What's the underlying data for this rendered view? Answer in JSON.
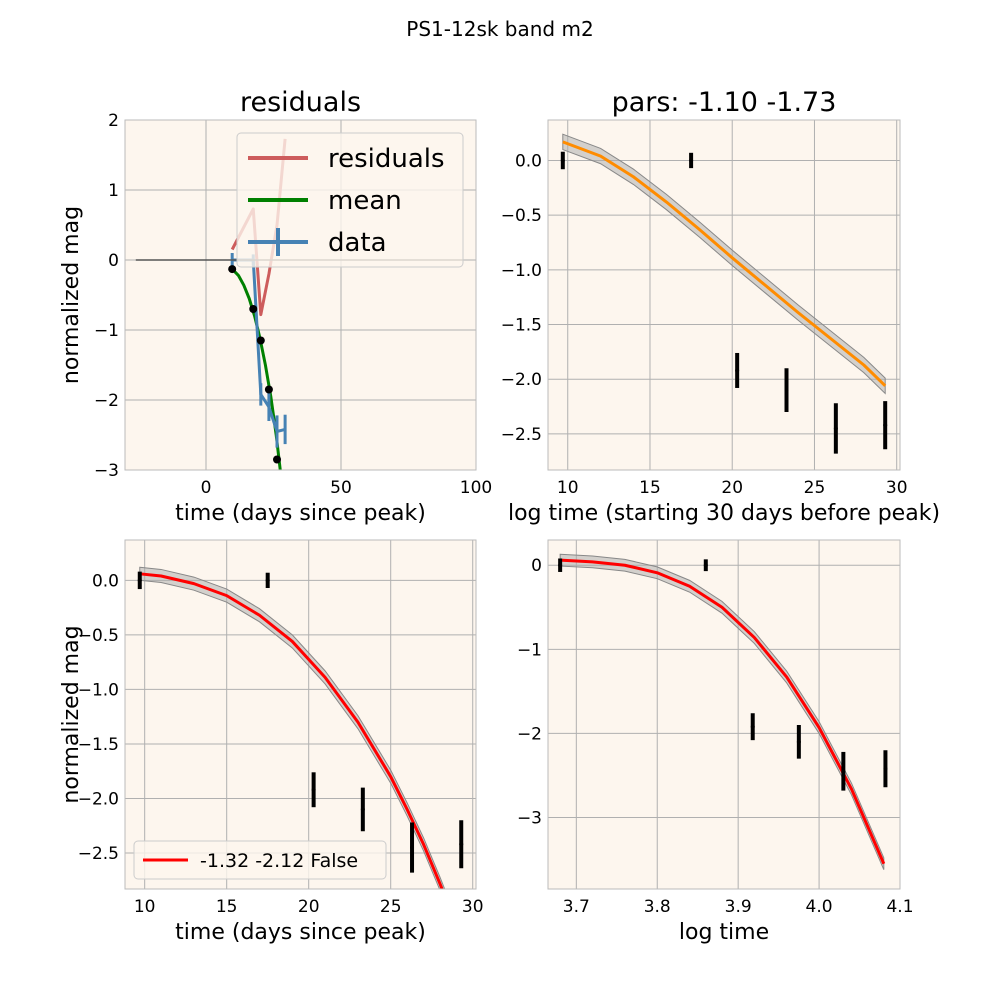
{
  "figure": {
    "suptitle": "PS1-12sk band m2"
  },
  "colors": {
    "panel_bg": "#fdf6ee",
    "grid": "#b0b0b0",
    "residuals": "#cd5c5c",
    "mean": "#008000",
    "data": "#4682b4",
    "fit_orange": "#ff8c00",
    "fit_red": "#ff0000",
    "band": "#a9a9a9",
    "points": "#000000",
    "baseline": "#555555"
  },
  "chart_data": [
    {
      "id": "residuals",
      "type": "line",
      "title": "residuals",
      "xlabel": "time (days since peak)",
      "ylabel": "normalized mag",
      "xlim": [
        -30,
        100
      ],
      "ylim": [
        -3,
        2
      ],
      "xticks": [
        0,
        50,
        100
      ],
      "xtick_labels": [
        "0",
        "50",
        "100"
      ],
      "yticks": [
        -3,
        -2,
        -1,
        0,
        1,
        2
      ],
      "ytick_labels": [
        "−3",
        "−2",
        "−1",
        "0",
        "1",
        "2"
      ],
      "grid": true,
      "legend": {
        "position": "top-right",
        "entries": [
          "residuals",
          "mean",
          "data"
        ]
      },
      "series": [
        {
          "name": "residuals",
          "style": "line",
          "x": [
            9.7,
            17.5,
            20.3,
            23.3,
            26.3,
            29.3
          ],
          "y": [
            0.15,
            0.73,
            -0.78,
            -0.2,
            0.5,
            1.73
          ]
        },
        {
          "name": "mean",
          "style": "line",
          "x": [
            9.7,
            12,
            14,
            16,
            18,
            20,
            22,
            24,
            26,
            27.5
          ],
          "y": [
            -0.13,
            -0.22,
            -0.36,
            -0.55,
            -0.8,
            -1.12,
            -1.5,
            -1.95,
            -2.5,
            -3.0
          ]
        },
        {
          "name": "data",
          "style": "errorbar",
          "x": [
            9.7,
            17.5,
            20.3,
            23.3,
            26.3,
            29.3
          ],
          "y": [
            0.0,
            0.0,
            -1.92,
            -2.1,
            -2.45,
            -2.42
          ],
          "yerr": [
            0.1,
            0.08,
            0.16,
            0.2,
            0.23,
            0.21
          ]
        },
        {
          "name": "observations",
          "style": "points",
          "x": [
            9.7,
            17.5,
            20.3,
            23.3,
            26.3
          ],
          "y": [
            -0.13,
            -0.7,
            -1.15,
            -1.85,
            -2.85
          ]
        },
        {
          "name": "baseline",
          "style": "line",
          "x": [
            -26,
            95
          ],
          "y": [
            0,
            0
          ]
        }
      ]
    },
    {
      "id": "pars",
      "type": "line",
      "title": "pars: -1.10 -1.73",
      "xlabel": "log time (starting 30 days before peak)",
      "ylabel": "",
      "xlim": [
        8.8,
        30.2
      ],
      "ylim": [
        -2.83,
        0.37
      ],
      "xticks": [
        10,
        15,
        20,
        25,
        30
      ],
      "xtick_labels": [
        "10",
        "15",
        "20",
        "25",
        "30"
      ],
      "yticks": [
        0,
        -0.5,
        -1,
        -1.5,
        -2,
        -2.5
      ],
      "ytick_labels": [
        "0.0",
        "−0.5",
        "−1.0",
        "−1.5",
        "−2.0",
        "−2.5"
      ],
      "grid": true,
      "series": [
        {
          "style": "line",
          "color_key": "fit_orange",
          "x": [
            9.7,
            12,
            14,
            16,
            18,
            20,
            22,
            24,
            26,
            28,
            29.3
          ],
          "y": [
            0.17,
            0.04,
            -0.15,
            -0.38,
            -0.63,
            -0.89,
            -1.14,
            -1.39,
            -1.63,
            -1.87,
            -2.06
          ],
          "band": 0.07
        },
        {
          "style": "errorbar",
          "x": [
            9.7,
            17.5,
            20.3,
            23.3,
            26.3,
            29.3
          ],
          "y": [
            0.0,
            0.0,
            -1.92,
            -2.1,
            -2.45,
            -2.42
          ],
          "yerr": [
            0.08,
            0.07,
            0.16,
            0.2,
            0.23,
            0.22
          ]
        }
      ]
    },
    {
      "id": "poly-time",
      "type": "line",
      "title": "",
      "xlabel": "time (days since peak)",
      "ylabel": "normalized mag",
      "xlim": [
        8.8,
        30.2
      ],
      "ylim": [
        -2.83,
        0.37
      ],
      "xticks": [
        10,
        15,
        20,
        25,
        30
      ],
      "xtick_labels": [
        "10",
        "15",
        "20",
        "25",
        "30"
      ],
      "yticks": [
        0,
        -0.5,
        -1,
        -1.5,
        -2,
        -2.5
      ],
      "ytick_labels": [
        "0.0",
        "−0.5",
        "−1.0",
        "−1.5",
        "−2.0",
        "−2.5"
      ],
      "grid": true,
      "legend": {
        "position": "lower-left",
        "entries": [
          "-1.32 -2.12 False"
        ]
      },
      "series": [
        {
          "name": "-1.32 -2.12 False",
          "style": "line",
          "color_key": "fit_red",
          "x": [
            9.7,
            11,
            13,
            15,
            17,
            19,
            21,
            23,
            25,
            26,
            27,
            28,
            29
          ],
          "y": [
            0.06,
            0.04,
            -0.03,
            -0.14,
            -0.32,
            -0.56,
            -0.89,
            -1.3,
            -1.8,
            -2.1,
            -2.42,
            -2.78,
            -3.16
          ],
          "band": 0.06
        },
        {
          "style": "errorbar",
          "x": [
            9.7,
            17.5,
            20.3,
            23.3,
            26.3,
            29.3
          ],
          "y": [
            0.0,
            0.0,
            -1.92,
            -2.1,
            -2.45,
            -2.42
          ],
          "yerr": [
            0.08,
            0.07,
            0.16,
            0.2,
            0.23,
            0.22
          ]
        }
      ]
    },
    {
      "id": "poly-logtime",
      "type": "line",
      "title": "",
      "xlabel": "log time",
      "ylabel": "",
      "xlim": [
        3.665,
        4.1
      ],
      "ylim": [
        -3.85,
        0.3
      ],
      "xticks": [
        3.7,
        3.8,
        3.9,
        4.0,
        4.1
      ],
      "xtick_labels": [
        "3.7",
        "3.8",
        "3.9",
        "4.0",
        "4.1"
      ],
      "yticks": [
        0,
        -1,
        -2,
        -3
      ],
      "ytick_labels": [
        "0",
        "−1",
        "−2",
        "−3"
      ],
      "grid": true,
      "series": [
        {
          "style": "line",
          "color_key": "fit_red",
          "x": [
            3.68,
            3.72,
            3.76,
            3.8,
            3.84,
            3.88,
            3.92,
            3.96,
            4.0,
            4.04,
            4.08
          ],
          "y": [
            0.06,
            0.04,
            0.0,
            -0.09,
            -0.25,
            -0.5,
            -0.86,
            -1.33,
            -1.93,
            -2.66,
            -3.55
          ],
          "band": 0.07
        },
        {
          "style": "errorbar",
          "x": [
            3.68,
            3.86,
            3.918,
            3.975,
            4.03,
            4.082
          ],
          "y": [
            0.0,
            0.0,
            -1.92,
            -2.1,
            -2.45,
            -2.42
          ],
          "yerr": [
            0.08,
            0.07,
            0.16,
            0.2,
            0.23,
            0.22
          ]
        }
      ]
    }
  ]
}
